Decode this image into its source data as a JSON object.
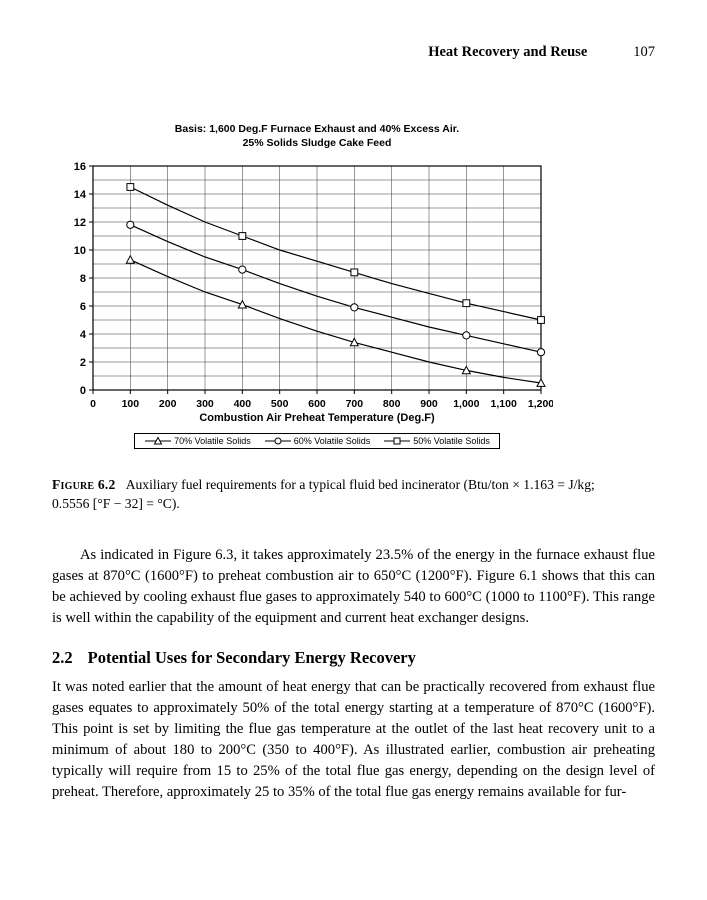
{
  "header": {
    "title": "Heat Recovery and Reuse",
    "page_number": "107"
  },
  "chart_data": {
    "type": "line",
    "title_lines": [
      "Basis: 1,600 Deg.F Furnace Exhaust and 40% Excess Air.",
      "25% Solids Sludge Cake Feed"
    ],
    "xlabel": "Combustion Air Preheat Temperature (Deg.F)",
    "ylabel": "",
    "xlim": [
      0,
      1200
    ],
    "ylim": [
      0,
      16
    ],
    "x_grid_step": 100,
    "y_grid_step": 1,
    "x_ticks": [
      0,
      100,
      200,
      300,
      400,
      500,
      600,
      700,
      800,
      900,
      1000,
      1100,
      1200
    ],
    "x_tick_labels": [
      "0",
      "100",
      "200",
      "300",
      "400",
      "500",
      "600",
      "700",
      "800",
      "900",
      "1,000",
      "1,100",
      "1,200"
    ],
    "y_ticks": [
      0,
      2,
      4,
      6,
      8,
      10,
      12,
      14,
      16
    ],
    "grid": true,
    "legend_position": "bottom",
    "series": [
      {
        "name": "70% Volatile Solids",
        "marker": "triangle",
        "x": [
          100,
          200,
          300,
          400,
          500,
          600,
          700,
          800,
          900,
          1000,
          1100,
          1200
        ],
        "values": [
          9.3,
          8.1,
          7.0,
          6.1,
          5.1,
          4.2,
          3.4,
          2.7,
          2.0,
          1.4,
          0.9,
          0.5
        ],
        "marker_x": [
          100,
          400,
          700,
          1000,
          1200
        ]
      },
      {
        "name": "60% Volatile Solids",
        "marker": "circle",
        "x": [
          100,
          200,
          300,
          400,
          500,
          600,
          700,
          800,
          900,
          1000,
          1100,
          1200
        ],
        "values": [
          11.8,
          10.6,
          9.5,
          8.6,
          7.6,
          6.7,
          5.9,
          5.2,
          4.5,
          3.9,
          3.3,
          2.7
        ],
        "marker_x": [
          100,
          400,
          700,
          1000,
          1200
        ]
      },
      {
        "name": "50% Volatile Solids",
        "marker": "square",
        "x": [
          100,
          200,
          300,
          400,
          500,
          600,
          700,
          800,
          900,
          1000,
          1100,
          1200
        ],
        "values": [
          14.5,
          13.2,
          12.0,
          11.0,
          10.0,
          9.2,
          8.4,
          7.6,
          6.9,
          6.2,
          5.6,
          5.0
        ],
        "marker_x": [
          100,
          400,
          700,
          1000,
          1200
        ]
      }
    ]
  },
  "figure": {
    "label": "Figure 6.2",
    "caption": "Auxiliary fuel requirements for a typical fluid bed incinerator (Btu/ton × 1.163 = J/kg; 0.5556 [°F − 32] = °C)."
  },
  "body": {
    "paragraph_1": "As indicated in Figure 6.3, it takes approximately 23.5% of the energy in the furnace exhaust flue gases at 870°C (1600°F) to preheat combustion air to 650°C (1200°F). Figure 6.1 shows that this can be achieved by cooling exhaust flue gases to approximately 540 to 600°C (1000 to 1100°F). This range is well within the capability of the equipment and current heat exchanger designs.",
    "section": {
      "number": "2.2",
      "title": "Potential Uses for Secondary Energy Recovery"
    },
    "paragraph_2": "It was noted earlier that the amount of heat energy that can be practically recovered from exhaust flue gases equates to approximately 50% of the total energy starting at a temperature of 870°C (1600°F). This point is set by limiting the flue gas temperature at the outlet of the last heat recovery unit to a minimum of about 180 to 200°C (350 to 400°F). As illustrated earlier, combustion air preheating typically will require from 15 to 25% of the total flue gas energy, depending on the design level of preheat. Therefore, approximately 25 to 35% of the total flue gas energy remains available for fur-"
  }
}
